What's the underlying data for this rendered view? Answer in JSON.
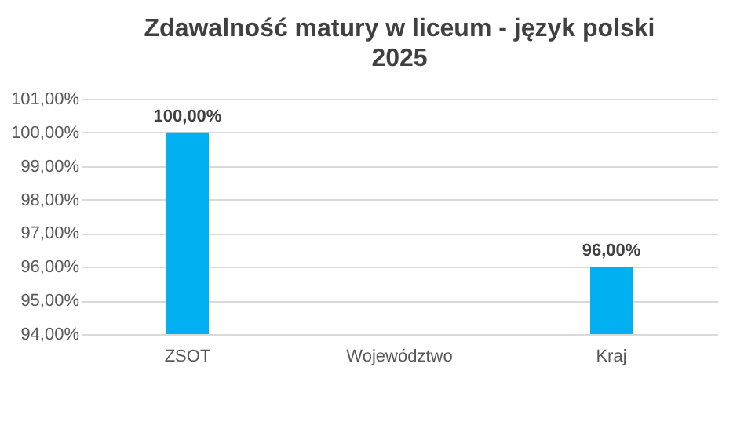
{
  "chart_data": {
    "type": "bar",
    "title": "Zdawalność matury w liceum - język polski",
    "subtitle": "2025",
    "categories": [
      "ZSOT",
      "Województwo",
      "Kraj"
    ],
    "values": [
      100,
      null,
      96
    ],
    "color": "#00b0f0",
    "value_labels": [
      "100,00%",
      null,
      "96,00%"
    ],
    "ylim": [
      94,
      101
    ],
    "yticks": [
      {
        "value": 94,
        "label": "94,00%"
      },
      {
        "value": 95,
        "label": "95,00%"
      },
      {
        "value": 96,
        "label": "96,00%"
      },
      {
        "value": 97,
        "label": "97,00%"
      },
      {
        "value": 98,
        "label": "98,00%"
      },
      {
        "value": 99,
        "label": "99,00%"
      },
      {
        "value": 100,
        "label": "100,00%"
      },
      {
        "value": 101,
        "label": "101,00%"
      }
    ],
    "grid": "y"
  }
}
